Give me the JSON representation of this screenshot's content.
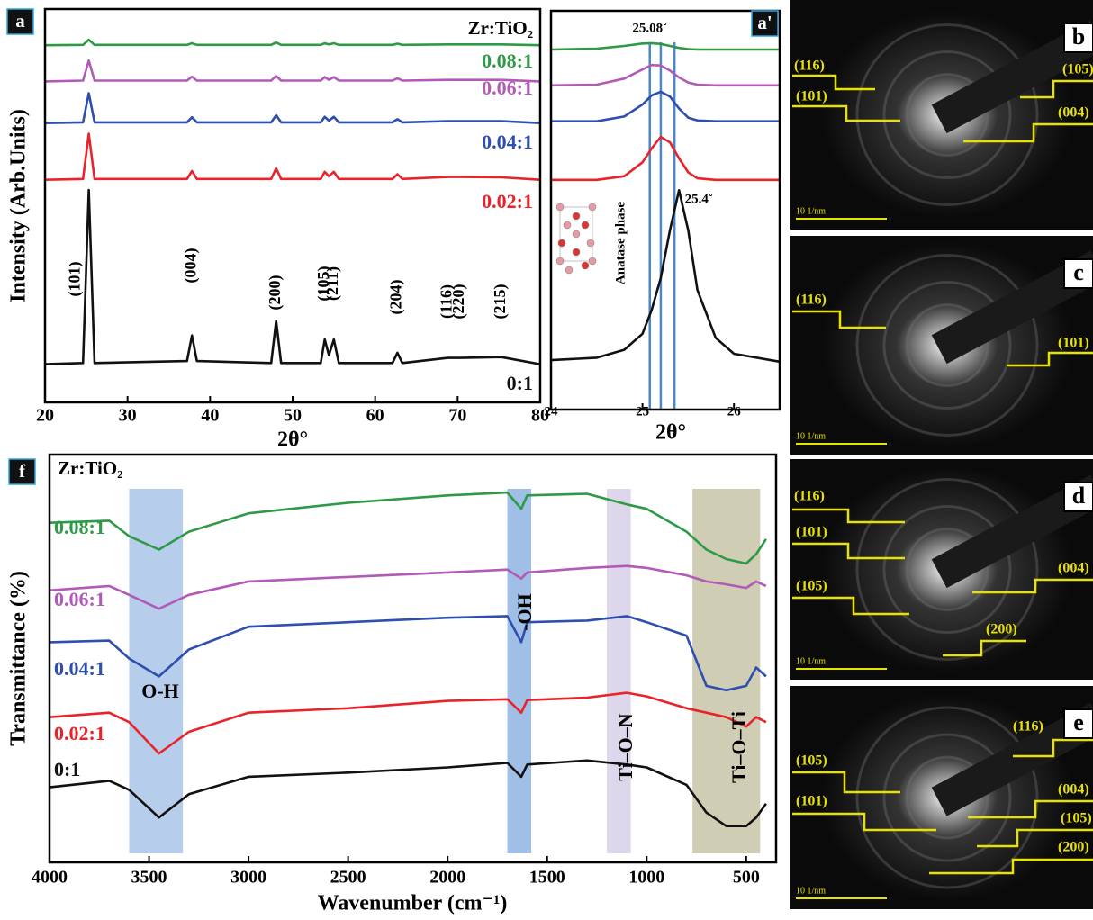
{
  "chart_data": [
    {
      "type": "line",
      "panel_label": "a",
      "legend_title": "Zr:TiO₂",
      "x_label": "2θ°",
      "y_label": "Intensity (Arb.Units)",
      "xlim": [
        20,
        80
      ],
      "xticks": [
        20,
        30,
        40,
        50,
        60,
        70,
        80
      ],
      "ylim": [
        0,
        100
      ],
      "x": [
        20,
        24.6,
        25.3,
        26,
        37.2,
        37.8,
        38.4,
        47.4,
        48,
        48.6,
        53.4,
        53.9,
        54.4,
        55.0,
        55.6,
        62.1,
        62.7,
        63.3,
        68.8,
        70.3,
        75.3,
        80
      ],
      "series": [
        {
          "name": "0.08:1",
          "color": "#2e9a45",
          "values": [
            90.8,
            90.9,
            92.2,
            90.9,
            90.9,
            91.3,
            90.9,
            90.9,
            91.5,
            90.9,
            90.9,
            91.3,
            91,
            91.3,
            90.9,
            90.9,
            91.2,
            90.9,
            91,
            91,
            91,
            90.8
          ]
        },
        {
          "name": "0.06:1",
          "color": "#b25ab8",
          "values": [
            81.6,
            81.8,
            86.9,
            81.8,
            81.8,
            82.8,
            81.8,
            81.8,
            83,
            81.8,
            81.8,
            82.7,
            82,
            82.7,
            81.8,
            81.8,
            82.4,
            81.8,
            82,
            82,
            82,
            81.6
          ]
        },
        {
          "name": "0.04:1",
          "color": "#2f4fb0",
          "values": [
            71,
            71.2,
            78.6,
            71.2,
            71.2,
            72.5,
            71.2,
            71.2,
            73,
            71.2,
            71.2,
            72.6,
            71.6,
            72.6,
            71.2,
            71.2,
            72,
            71.2,
            71.5,
            71.5,
            71.5,
            71
          ]
        },
        {
          "name": "0.02:1",
          "color": "#e8242a",
          "values": [
            56.6,
            56.8,
            68.3,
            56.8,
            56.8,
            58.8,
            56.8,
            56.8,
            59.5,
            56.8,
            56.8,
            58.6,
            57.5,
            58.6,
            56.8,
            56.8,
            58,
            56.8,
            57.3,
            57.3,
            57.2,
            56.6
          ]
        },
        {
          "name": "0:1",
          "color": "#111111",
          "values": [
            9.7,
            10,
            54,
            10,
            10.5,
            17,
            10.5,
            10,
            20.7,
            10,
            10,
            16,
            12,
            16,
            10,
            10,
            12.6,
            10,
            11.3,
            11.3,
            11.5,
            9.7
          ]
        }
      ],
      "peak_labels": [
        {
          "label": "(101)",
          "x": 25.3
        },
        {
          "label": "(004)",
          "x": 37.8
        },
        {
          "label": "(200)",
          "x": 48
        },
        {
          "label": "(105)",
          "x": 53.9
        },
        {
          "label": "(211)",
          "x": 55.0
        },
        {
          "label": "(204)",
          "x": 62.7
        },
        {
          "label": "(116)",
          "x": 68.8
        },
        {
          "label": "(220)",
          "x": 70.3
        },
        {
          "label": "(215)",
          "x": 75.3
        }
      ]
    },
    {
      "type": "line",
      "panel_label": "a'",
      "x_label": "2θ°",
      "structure_label": "Anatase phase",
      "xlim": [
        24,
        26.5
      ],
      "xticks": [
        24,
        25,
        26
      ],
      "ylim": [
        0,
        100
      ],
      "x": [
        24,
        24.5,
        24.8,
        25,
        25.1,
        25.2,
        25.3,
        25.4,
        25.5,
        25.6,
        25.8,
        26,
        26.5
      ],
      "series": [
        {
          "color": "#2e9a45",
          "values": [
            90.3,
            90.5,
            91.2,
            91.8,
            91.9,
            91.7,
            91.2,
            90.7,
            90.4,
            90.3,
            90.3,
            90.3,
            90.3
          ]
        },
        {
          "color": "#b25ab8",
          "values": [
            81.3,
            81.5,
            83,
            85.3,
            86.4,
            86.3,
            85,
            83.3,
            82,
            81.5,
            81.3,
            81.3,
            81.3
          ]
        },
        {
          "color": "#2f4fb0",
          "values": [
            72.3,
            72.3,
            73.5,
            76.5,
            78.8,
            79.7,
            78.5,
            75.5,
            73.2,
            72.5,
            72.3,
            72.3,
            72.3
          ]
        },
        {
          "color": "#e8242a",
          "values": [
            57.6,
            57.6,
            58.5,
            62,
            65.5,
            68.4,
            67,
            63,
            59.5,
            58,
            57.6,
            57.6,
            57.6
          ]
        },
        {
          "color": "#111111",
          "values": [
            12.4,
            13,
            15,
            19,
            25,
            33,
            45,
            55,
            45,
            30,
            18,
            14,
            12
          ]
        }
      ],
      "reference_lines": [
        25.08,
        25.2,
        25.35
      ],
      "reference_color": "#4a86c8",
      "annotations": [
        {
          "label": "25.08˚",
          "x": 25.08
        },
        {
          "label": "25.4˚",
          "x": 25.4
        }
      ]
    },
    {
      "type": "line",
      "panel_label": "f",
      "legend_title": "Zr:TiO₂",
      "x_label": "Wavenumber (cm⁻¹)",
      "y_label": "Transmittance (%)",
      "xlim": [
        4000,
        350
      ],
      "xticks": [
        4000,
        3500,
        3000,
        2500,
        2000,
        1500,
        1000,
        500
      ],
      "ylim": [
        0,
        100
      ],
      "x": [
        4000,
        3700,
        3600,
        3450,
        3300,
        3000,
        2500,
        2000,
        1700,
        1630,
        1600,
        1300,
        1100,
        1000,
        800,
        700,
        600,
        500,
        450,
        400
      ],
      "series": [
        {
          "name": "0.08:1",
          "color": "#2e9a45",
          "values": [
            83.3,
            83.8,
            80,
            76.7,
            81.1,
            85.6,
            88.2,
            90,
            90.7,
            86.7,
            90,
            90.4,
            87.8,
            86.7,
            81.1,
            76.7,
            74.4,
            73.3,
            75.6,
            79.3
          ]
        },
        {
          "name": "0.06:1",
          "color": "#b25ab8",
          "values": [
            66.7,
            67.8,
            65.6,
            62.2,
            65.6,
            68.9,
            70,
            71.1,
            71.8,
            69.6,
            71.1,
            72.2,
            72.7,
            72.2,
            70.4,
            68.9,
            68.2,
            67.3,
            68.9,
            67.8
          ]
        },
        {
          "name": "0.04:1",
          "color": "#2f4fb0",
          "values": [
            54,
            54.4,
            50,
            45.6,
            52.2,
            57.8,
            58.9,
            60,
            60.4,
            54,
            58.9,
            59.3,
            60.4,
            58.9,
            55.6,
            43.3,
            42.2,
            43.3,
            47.8,
            45.6
          ]
        },
        {
          "name": "0.02:1",
          "color": "#e8242a",
          "values": [
            35.6,
            36.7,
            34.4,
            26.7,
            32,
            36.7,
            37.8,
            39.6,
            40,
            36.7,
            39.8,
            40.4,
            41.6,
            40.7,
            37.8,
            36.7,
            35.6,
            33.3,
            35.6,
            34.4
          ]
        },
        {
          "name": "0:1",
          "color": "#111111",
          "values": [
            18.4,
            20,
            17.8,
            11,
            16.7,
            21,
            22,
            23.3,
            24.4,
            21,
            24,
            25,
            24,
            23.3,
            19,
            12.2,
            8.9,
            8.9,
            11,
            14.4
          ]
        }
      ],
      "bands": [
        {
          "label": "O-H",
          "from": 3600,
          "to": 3330,
          "color": "#a9c6e8"
        },
        {
          "label": "-OH",
          "from": 1700,
          "to": 1580,
          "color": "#8fb4e3"
        },
        {
          "label": "Ti–O–N",
          "from": 1200,
          "to": 1080,
          "color": "#d8cfe6"
        },
        {
          "label": "Ti–O–Ti",
          "from": 770,
          "to": 430,
          "color": "#c8c4a8"
        }
      ]
    }
  ],
  "saed_panels": [
    {
      "label": "b",
      "planes": [
        "(116)",
        "(101)",
        "(105)",
        "(004)"
      ],
      "scale": "10 1/nm"
    },
    {
      "label": "c",
      "planes": [
        "(116)",
        "(101)"
      ],
      "scale": "10 1/nm"
    },
    {
      "label": "d",
      "planes": [
        "(116)",
        "(101)",
        "(105)",
        "(004)",
        "(200)"
      ],
      "scale": "10 1/nm"
    },
    {
      "label": "e",
      "planes": [
        "(116)",
        "(105)",
        "(004)",
        "(101)",
        "(105)",
        "(200)"
      ],
      "scale": "10 1/nm"
    }
  ]
}
